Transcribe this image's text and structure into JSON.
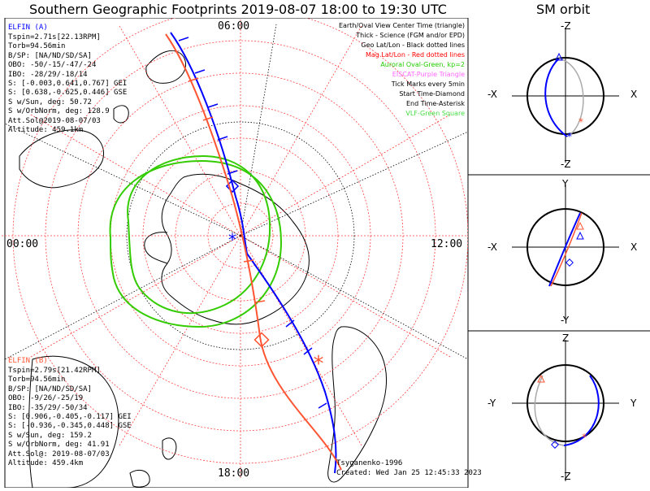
{
  "title": "Southern Geographic Footprints 2019-08-07 18:00 to 19:30 UTC",
  "sm_title": "SM orbit",
  "clock_labels": {
    "top": "06:00",
    "left": "00:00",
    "right": "12:00",
    "bottom": "18:00"
  },
  "elfin_a": {
    "name": "ELFIN (A)",
    "color": "#0000ff",
    "lines": [
      "Tspin=2.71s[22.13RPM]",
      "Torb=94.56min",
      "B/SP: [NA/ND/SD/SA]",
      "OBO: -50/-15/-47/-24",
      "IBO: -28/29/-18/14",
      "S: [-0.003,0.641,0.767] GEI",
      "S: [0.638,-0.625,0.446] GSE",
      "S w/Sun, deg: 50.72",
      "S w/OrbNorm, deg: 128.9",
      "Att.Sol@2019-08-07/03",
      "Altitude: 459.1km"
    ]
  },
  "elfin_b": {
    "name": "ELFIN (B)",
    "color": "#ff5533",
    "lines": [
      "Tspin=2.79s[21.42RPM]",
      "Torb=94.56min",
      "B/SP: [NA/ND/SD/SA]",
      "OBO: -9/26/-25/19",
      "IBO: -35/29/-50/34",
      "S: [0.906,-0.405,-0.117] GEI",
      "S: [-0.936,-0.345,0.448] GSE",
      "S w/Sun, deg: 159.2",
      "S w/OrbNorm, deg: 41.91",
      "Att.Sol@: 2019-08-07/03",
      "Altitude: 459.4km"
    ]
  },
  "legend": [
    {
      "text": "Earth/Oval View Center Time (triangle)",
      "color": "#000000"
    },
    {
      "text": "Thick - Science (FGM and/or EPD)",
      "color": "#000000"
    },
    {
      "text": "Geo Lat/Lon - Black dotted lines",
      "color": "#000000"
    },
    {
      "text": "Mag Lat/Lon - Red dotted lines",
      "color": "#ff0000"
    },
    {
      "text": "Auroral Oval-Green, kp=2",
      "color": "#22cc00"
    },
    {
      "text": "EISCAT-Purple Triangle",
      "color": "#ff66ff"
    },
    {
      "text": "Tick Marks every 5min",
      "color": "#000000"
    },
    {
      "text": "Start Time-Diamond",
      "color": "#000000"
    },
    {
      "text": "End Time-Asterisk",
      "color": "#000000"
    },
    {
      "text": "VLF-Green Square",
      "color": "#44dd44"
    }
  ],
  "credits": {
    "author": "Tsyganenko-1996",
    "created": "Created: Wed Jan 25 12:45:33 2023"
  },
  "sm_panels": [
    {
      "top": "-Z",
      "left": "-X",
      "right": "X",
      "bottom": "-Z"
    },
    {
      "top": "Y",
      "left": "-X",
      "right": "X",
      "bottom": "-Y"
    },
    {
      "top": "Z",
      "left": "-Y",
      "right": "Y",
      "bottom": "-Z"
    }
  ],
  "colors": {
    "mag_grid": "#ff4444",
    "aurora": "#33cc00",
    "geo_grid": "#000000"
  }
}
